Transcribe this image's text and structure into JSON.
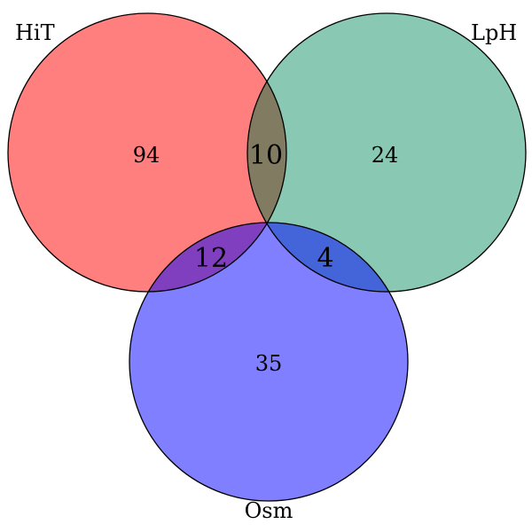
{
  "chart_data": {
    "type": "venn",
    "sets": [
      {
        "name": "HiT",
        "color": "#ff0000"
      },
      {
        "name": "LpH",
        "color": "#14946a"
      },
      {
        "name": "Osm",
        "color": "#0000ff"
      }
    ],
    "regions": {
      "hit_only": 94,
      "lph_only": 24,
      "osm_only": 35,
      "hit_lph": 10,
      "hit_osm": 12,
      "lph_osm": 4
    }
  }
}
